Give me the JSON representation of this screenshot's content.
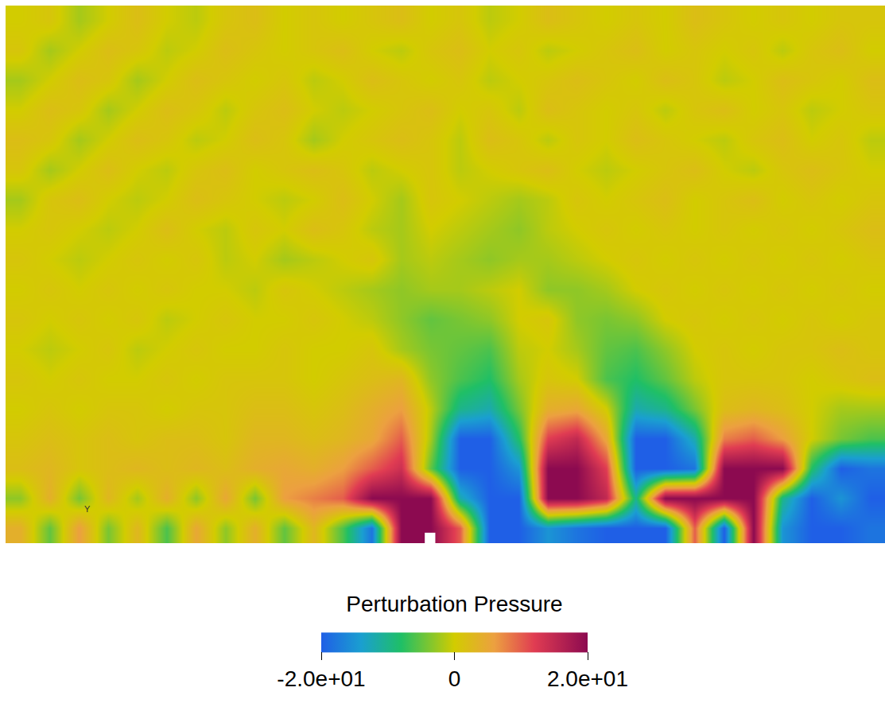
{
  "chart_data": {
    "type": "heatmap",
    "tick_labels": false,
    "z": [
      [
        4,
        -5,
        6,
        -4,
        3,
        -6,
        5,
        -3,
        4,
        -5,
        3,
        -6,
        -18,
        20,
        20,
        10,
        -20,
        -20,
        -15,
        -18,
        -20,
        -20,
        -20,
        10,
        -20,
        20,
        -15,
        -20,
        -20,
        -18
      ],
      [
        -3,
        4,
        -4,
        3,
        -2,
        4,
        -3,
        5,
        -4,
        6,
        8,
        10,
        20,
        20,
        20,
        -12,
        -20,
        -20,
        20,
        20,
        15,
        -10,
        20,
        20,
        20,
        20,
        -10,
        -20,
        -15,
        -20
      ],
      [
        2,
        3,
        1,
        2,
        3,
        2,
        3,
        2,
        4,
        5,
        4,
        6,
        10,
        14,
        -5,
        -20,
        -20,
        -15,
        20,
        20,
        12,
        -20,
        -20,
        -18,
        20,
        20,
        20,
        -8,
        -20,
        -18
      ],
      [
        1,
        2,
        1,
        2,
        1,
        2,
        2,
        1,
        3,
        3,
        2,
        3,
        5,
        10,
        -2,
        -20,
        -20,
        -8,
        12,
        15,
        5,
        -20,
        -20,
        -12,
        8,
        10,
        6,
        0,
        -4,
        -6
      ],
      [
        0,
        1,
        0,
        1,
        1,
        0,
        1,
        1,
        2,
        2,
        1,
        2,
        4,
        6,
        -1,
        -10,
        -12,
        -4,
        4,
        5,
        0,
        -12,
        -10,
        -4,
        2,
        3,
        2,
        0,
        -2,
        -2
      ],
      [
        1,
        0,
        1,
        0,
        0,
        1,
        0,
        1,
        1,
        1,
        0,
        1,
        2,
        3,
        -3,
        -6,
        -8,
        -2,
        1,
        0,
        -6,
        -8,
        -5,
        -1,
        1,
        1,
        1,
        0,
        1,
        2
      ],
      [
        0,
        -1,
        0,
        1,
        -1,
        0,
        1,
        0,
        0,
        1,
        0,
        0,
        1,
        -2,
        -4,
        -5,
        -6,
        -1,
        0,
        -2,
        -5,
        -6,
        -3,
        0,
        1,
        0,
        1,
        1,
        2,
        1
      ],
      [
        1,
        0,
        1,
        0,
        1,
        -1,
        0,
        1,
        0,
        0,
        1,
        0,
        -1,
        -3,
        -5,
        -4,
        -3,
        0,
        1,
        -3,
        -4,
        -3,
        0,
        1,
        0,
        1,
        0,
        1,
        0,
        1
      ],
      [
        0,
        1,
        0,
        1,
        0,
        1,
        0,
        0,
        -1,
        1,
        0,
        -1,
        -2,
        -3,
        -2,
        -2,
        -1,
        0,
        -3,
        -3,
        -2,
        0,
        1,
        0,
        1,
        0,
        1,
        0,
        1,
        0
      ],
      [
        1,
        0,
        -1,
        0,
        1,
        0,
        1,
        -1,
        0,
        -2,
        -1,
        0,
        1,
        -2,
        -1,
        -2,
        -3,
        -2,
        -2,
        -1,
        0,
        1,
        0,
        1,
        0,
        1,
        0,
        1,
        0,
        1
      ],
      [
        0,
        1,
        0,
        -1,
        0,
        2,
        0,
        -1,
        1,
        0,
        2,
        1,
        -1,
        -2,
        0,
        -1,
        -2,
        -3,
        -1,
        0,
        1,
        0,
        1,
        0,
        1,
        0,
        1,
        0,
        1,
        2
      ],
      [
        -2,
        1,
        2,
        0,
        -1,
        0,
        2,
        1,
        0,
        -1,
        0,
        2,
        0,
        -2,
        1,
        0,
        -1,
        -2,
        -1,
        1,
        0,
        1,
        2,
        0,
        1,
        2,
        0,
        1,
        0,
        1
      ],
      [
        1,
        -2,
        0,
        2,
        0,
        -1,
        1,
        2,
        0,
        1,
        2,
        1,
        -1,
        0,
        1,
        -1,
        0,
        1,
        2,
        0,
        -1,
        0,
        1,
        2,
        0,
        -1,
        1,
        2,
        1,
        0
      ],
      [
        2,
        1,
        -2,
        0,
        2,
        1,
        -1,
        0,
        2,
        1,
        -2,
        0,
        1,
        2,
        1,
        -1,
        2,
        1,
        -1,
        1,
        0,
        2,
        1,
        0,
        -1,
        1,
        2,
        0,
        1,
        -1
      ],
      [
        0,
        2,
        1,
        -2,
        0,
        2,
        1,
        -1,
        1,
        2,
        0,
        -1,
        0,
        1,
        2,
        0,
        1,
        -1,
        2,
        1,
        0,
        1,
        -1,
        1,
        2,
        0,
        1,
        -1,
        0,
        1
      ],
      [
        -2,
        0,
        2,
        1,
        -2,
        0,
        2,
        1,
        0,
        1,
        -1,
        0,
        2,
        1,
        0,
        1,
        -1,
        0,
        1,
        2,
        1,
        0,
        2,
        1,
        -1,
        0,
        2,
        1,
        0,
        2
      ],
      [
        1,
        -2,
        0,
        2,
        1,
        -1,
        0,
        2,
        1,
        0,
        1,
        2,
        0,
        -1,
        1,
        2,
        0,
        1,
        -1,
        0,
        1,
        2,
        0,
        1,
        0,
        1,
        -1,
        1,
        2,
        0
      ],
      [
        0,
        1,
        -2,
        0,
        2,
        0,
        -1,
        1,
        2,
        0,
        1,
        0,
        1,
        2,
        0,
        1,
        -1,
        0,
        2,
        1,
        0,
        1,
        0,
        2,
        1,
        0,
        1,
        0,
        1,
        1
      ]
    ],
    "colorbar": {
      "title": "Perturbation Pressure",
      "range": [
        -20,
        20
      ],
      "ticks": [
        {
          "value": -20,
          "label": "-2.0e+01"
        },
        0,
        {
          "value": 20,
          "label": "2.0e+01"
        }
      ]
    },
    "annotations": [
      "Y"
    ]
  }
}
